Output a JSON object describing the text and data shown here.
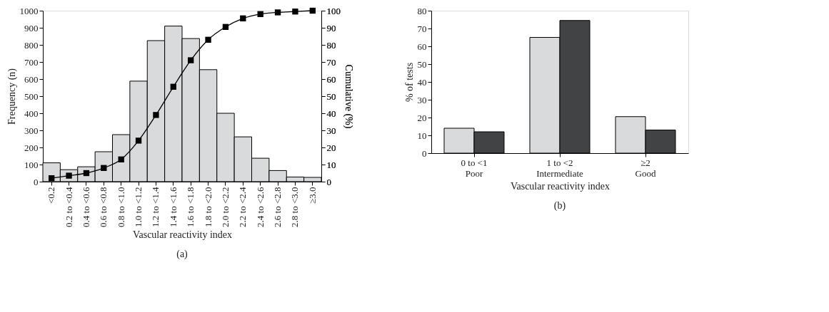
{
  "chart_data": [
    {
      "type": "bar",
      "categories": [
        "<0.2",
        "0.2 to <0.4",
        "0.4 to <0.6",
        "0.6 to <0.8",
        "0.8 to <1.0",
        "1.0 to <1.2",
        "1.2 to <1.4",
        "1.4 to <1.6",
        "1.6 to <1.8",
        "1.8 to <2.0",
        "2.0 to <2.2",
        "2.2 to <2.4",
        "2.4 to <2.6",
        "2.6 to <2.8",
        "2.8 to <3.0",
        "≥3.0"
      ],
      "series": [
        {
          "type": "bar",
          "color": "#d9dadc",
          "values": [
            110,
            70,
            87,
            175,
            275,
            588,
            825,
            910,
            837,
            655,
            400,
            262,
            137,
            65,
            27,
            25
          ]
        },
        {
          "type": "line",
          "axis": "y2",
          "color": "#000000",
          "values": [
            2,
            3.5,
            5,
            8,
            13,
            24,
            39,
            55.5,
            71,
            83,
            90.5,
            95.5,
            98,
            99,
            99.5,
            100
          ]
        }
      ],
      "marker": "square",
      "line_style": "solid",
      "ylim": [
        0,
        1000
      ],
      "yticks": [
        0,
        100,
        200,
        300,
        400,
        500,
        600,
        700,
        800,
        900,
        1000
      ],
      "y2lim": [
        0,
        100
      ],
      "y2ticks": [
        0,
        10,
        20,
        30,
        40,
        50,
        60,
        70,
        80,
        90,
        100
      ],
      "xlabel": "Vascular reactivity index",
      "ylabel": "Frequency (n)",
      "y2label": "Cumulative (%)",
      "annotations": [
        "(a)"
      ],
      "grid": false
    },
    {
      "type": "bar",
      "categories": [
        "0 to <1\nPoor",
        "1 to <2\nIntermediate",
        "≥2\nGood"
      ],
      "series": [
        {
          "color": "#d9dadc",
          "values": [
            14,
            65,
            20.5
          ]
        },
        {
          "color": "#424345",
          "values": [
            12,
            74.5,
            13
          ]
        }
      ],
      "ylim": [
        0,
        80
      ],
      "yticks": [
        0,
        10,
        20,
        30,
        40,
        50,
        60,
        70,
        80
      ],
      "xlabel": "Vascular reactivity index",
      "ylabel": "% of tests",
      "annotations": [
        "(b)"
      ],
      "grid": false
    }
  ]
}
